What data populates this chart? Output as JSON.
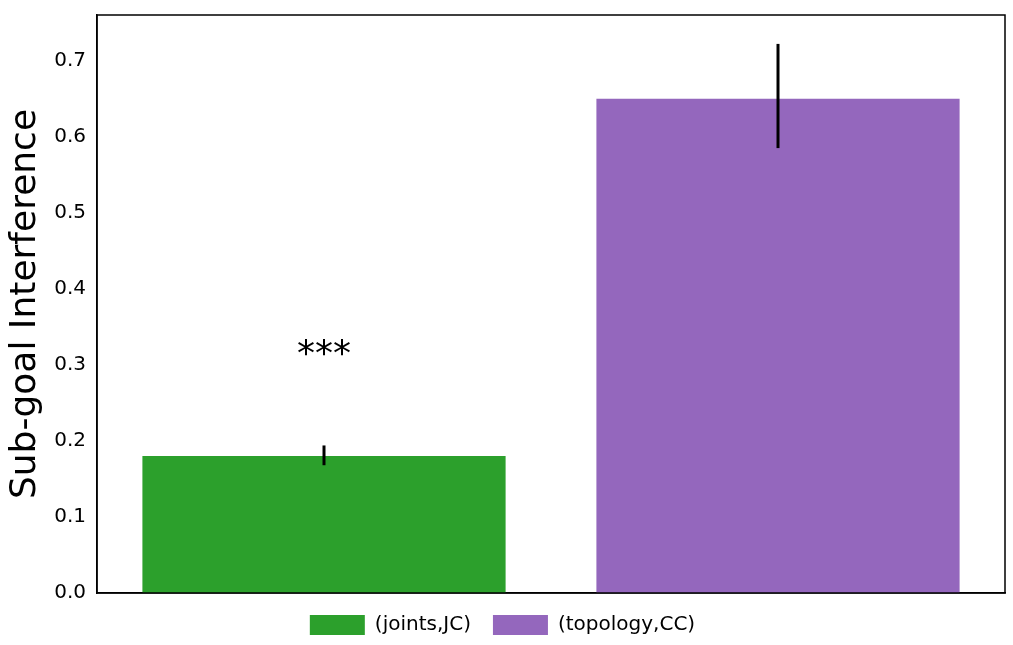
{
  "chart_data": {
    "type": "bar",
    "ylabel": "Sub-goal Interference",
    "categories": [
      null,
      null
    ],
    "series": [
      {
        "name": "(joints,JC)",
        "color": "#2ca02c",
        "values": [
          0.18,
          null
        ],
        "errors": [
          [
            0.168,
            0.194
          ],
          null
        ]
      },
      {
        "name": "(topology,CC)",
        "color": "#9467bd",
        "values": [
          null,
          0.65
        ],
        "errors": [
          null,
          [
            0.585,
            0.722
          ]
        ]
      }
    ],
    "ylim": [
      0,
      0.76
    ],
    "yticks": [
      {
        "value": 0,
        "label": "0.0"
      },
      0.1,
      0.2,
      0.3,
      0.4,
      0.5,
      0.6,
      0.7
    ],
    "tick_labels": "y",
    "grid": false,
    "legend": "bottom",
    "annotations": [
      "***"
    ]
  }
}
